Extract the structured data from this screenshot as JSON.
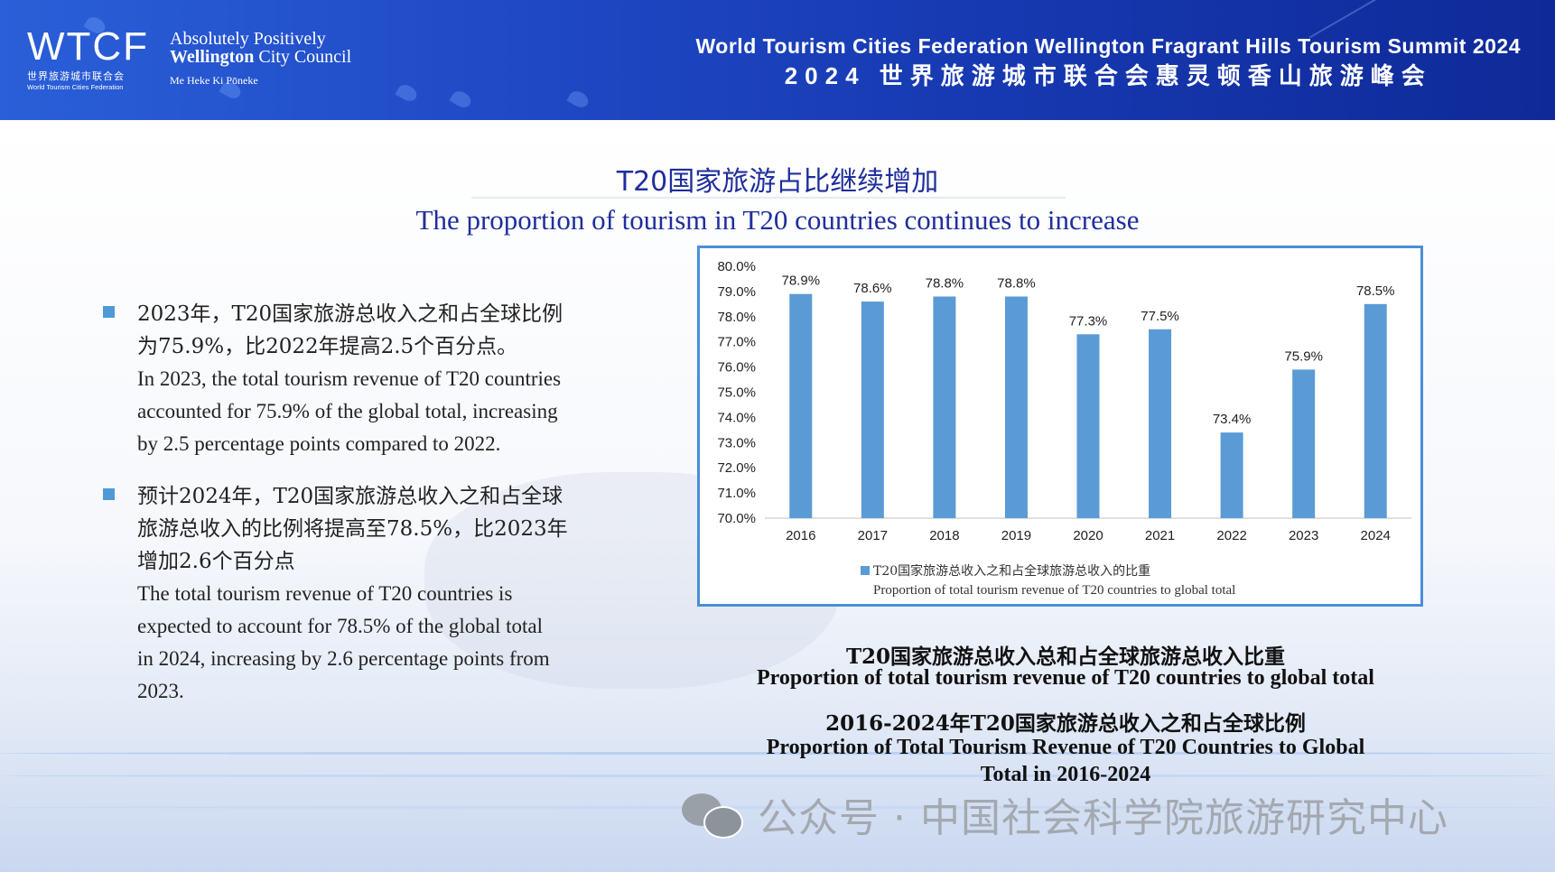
{
  "header": {
    "wtcf_mark": "WTCF",
    "wtcf_cn": "世界旅游城市联合会",
    "wtcf_en": "World Tourism Cities Federation",
    "wcc_line1": "Absolutely Positively",
    "wcc_line2_bold": "Wellington",
    "wcc_line2_rest": " City Council",
    "wcc_line3": "Me Heke Ki Pōneke",
    "summit_en": "World Tourism Cities Federation Wellington Fragrant Hills Tourism Summit 2024",
    "summit_cn": "2024 世界旅游城市联合会惠灵顿香山旅游峰会"
  },
  "titles": {
    "cn": "T20国家旅游占比继续增加",
    "en": "The proportion of tourism in T20 countries continues to increase"
  },
  "bullets": [
    {
      "cn1": "2023年，T20国家旅游总收入之和占全球比例",
      "cn2": "为75.9%，比2022年提高2.5个百分点。",
      "en1": "In 2023, the total tourism revenue of T20 countries",
      "en2": "accounted for 75.9% of the global total, increasing",
      "en3": "by 2.5 percentage points compared to 2022.",
      "en4": ""
    },
    {
      "cn1": "预计2024年，T20国家旅游总收入之和占全球",
      "cn2": "旅游总收入的比例将提高至78.5%，比2023年",
      "cn3": "增加2.6个百分点",
      "en1": "The total tourism revenue of T20 countries is",
      "en2": "expected to account for 78.5% of the global total",
      "en3": "in 2024, increasing by 2.6 percentage points from",
      "en4": "2023."
    }
  ],
  "chart_data": {
    "type": "bar",
    "categories": [
      "2016",
      "2017",
      "2018",
      "2019",
      "2020",
      "2021",
      "2022",
      "2023",
      "2024"
    ],
    "values": [
      78.9,
      78.6,
      78.8,
      78.8,
      77.3,
      77.5,
      73.4,
      75.9,
      78.5
    ],
    "data_labels": [
      "78.9%",
      "78.6%",
      "78.8%",
      "78.8%",
      "77.3%",
      "77.5%",
      "73.4%",
      "75.9%",
      "78.5%"
    ],
    "ylim": [
      70.0,
      80.0
    ],
    "yticks": [
      "70.0%",
      "71.0%",
      "72.0%",
      "73.0%",
      "74.0%",
      "75.0%",
      "76.0%",
      "77.0%",
      "78.0%",
      "79.0%",
      "80.0%"
    ],
    "legend_cn": "T20国家旅游总收入之和占全球旅游总收入的比重",
    "legend_en": "Proportion of total tourism revenue of T20 countries to global total",
    "legend_placement": "bottom",
    "bar_color": "#5b9bd5",
    "grid": false
  },
  "captions": {
    "c1_cn": "T20国家旅游总收入总和占全球旅游总收入比重",
    "c1_en": "Proportion of total tourism revenue of T20 countries to global total",
    "c2_cn": "2016-2024年T20国家旅游总收入之和占全球比例",
    "c2_en": "Proportion of Total Tourism Revenue of T20 Countries to Global Total in 2016-2024"
  },
  "watermark": {
    "icon": "wechat-icon",
    "text": "公众号 · 中国社会科学院旅游研究中心"
  }
}
